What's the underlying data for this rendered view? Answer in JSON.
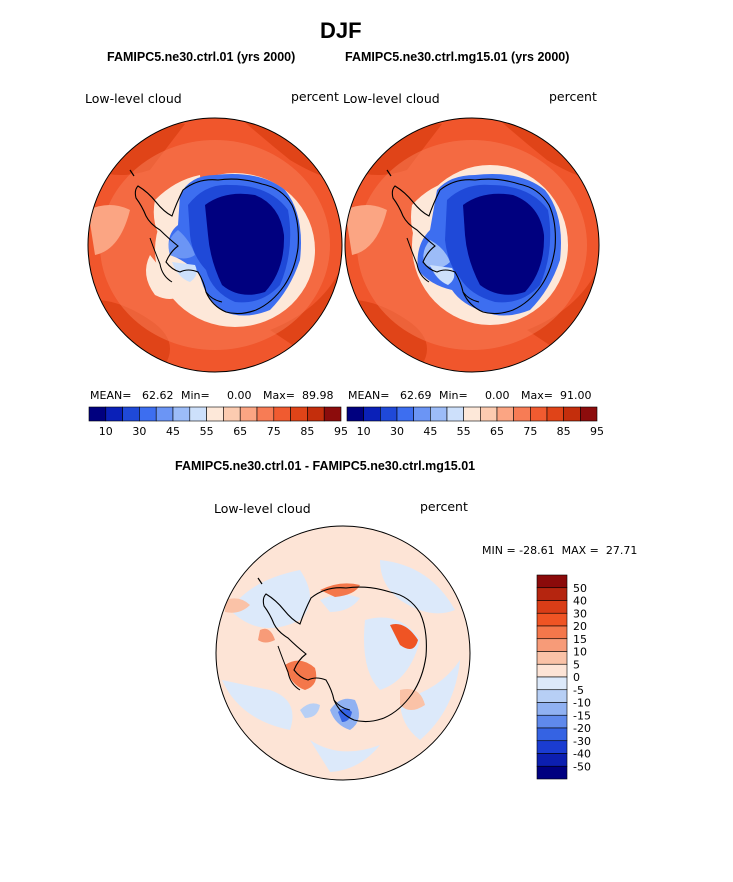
{
  "title": "DJF",
  "panels": [
    {
      "subtitle": "FAMIPC5.ne30.ctrl.01 (yrs 2000)",
      "left_label": "Low-level cloud",
      "right_label": "percent",
      "stats": {
        "mean_label": "MEAN=",
        "mean": "62.62",
        "min_label": "Min=",
        "min": "0.00",
        "max_label": "Max=",
        "max": "89.98"
      }
    },
    {
      "subtitle": "FAMIPC5.ne30.ctrl.mg15.01 (yrs 2000)",
      "left_label": "Low-level cloud",
      "right_label": "percent",
      "stats": {
        "mean_label": "MEAN=",
        "mean": "62.69",
        "min_label": "Min=",
        "min": "0.00",
        "max_label": "Max=",
        "max": "91.00"
      }
    },
    {
      "subtitle": "FAMIPC5.ne30.ctrl.01 - FAMIPC5.ne30.ctrl.mg15.01",
      "left_label": "Low-level cloud",
      "right_label": "percent",
      "stats_text": "MIN = -28.61  MAX =  27.71"
    }
  ],
  "chart_data": [
    {
      "type": "heatmap",
      "projection": "south-polar-stereographic",
      "title": "FAMIPC5.ne30.ctrl.01 (yrs 2000)",
      "variable": "Low-level cloud",
      "units": "percent",
      "mean": 62.62,
      "min": 0.0,
      "max": 89.98,
      "colorbar": {
        "tick_labels": [
          "10",
          "30",
          "45",
          "55",
          "65",
          "75",
          "85",
          "95"
        ],
        "colors": [
          "#00007f",
          "#0a20b8",
          "#1f49d8",
          "#3d6ef0",
          "#6b95f5",
          "#9cbcf8",
          "#cde0fb",
          "#fde8d9",
          "#fccbb0",
          "#fba583",
          "#f77c55",
          "#f05b30",
          "#e04418",
          "#c42e0c",
          "#8c0c0c"
        ]
      }
    },
    {
      "type": "heatmap",
      "projection": "south-polar-stereographic",
      "title": "FAMIPC5.ne30.ctrl.mg15.01 (yrs 2000)",
      "variable": "Low-level cloud",
      "units": "percent",
      "mean": 62.69,
      "min": 0.0,
      "max": 91.0,
      "colorbar": {
        "tick_labels": [
          "10",
          "30",
          "45",
          "55",
          "65",
          "75",
          "85",
          "95"
        ],
        "colors": [
          "#00007f",
          "#0a20b8",
          "#1f49d8",
          "#3d6ef0",
          "#6b95f5",
          "#9cbcf8",
          "#cde0fb",
          "#fde8d9",
          "#fccbb0",
          "#fba583",
          "#f77c55",
          "#f05b30",
          "#e04418",
          "#c42e0c",
          "#8c0c0c"
        ]
      }
    },
    {
      "type": "heatmap",
      "projection": "south-polar-stereographic",
      "title": "FAMIPC5.ne30.ctrl.01 - FAMIPC5.ne30.ctrl.mg15.01",
      "variable": "Low-level cloud",
      "units": "percent",
      "min": -28.61,
      "max": 27.71,
      "colorbar": {
        "orientation": "vertical",
        "tick_labels": [
          "50",
          "40",
          "30",
          "20",
          "15",
          "10",
          "5",
          "0",
          "-5",
          "-10",
          "-15",
          "-20",
          "-30",
          "-40",
          "-50"
        ],
        "colors": [
          "#8b0a0a",
          "#b5250f",
          "#d93d17",
          "#ef5424",
          "#f4774b",
          "#f79b78",
          "#fac2a7",
          "#fde4d6",
          "#dce9fa",
          "#b7cff5",
          "#90b1f2",
          "#5f89ec",
          "#3563e3",
          "#1a3cd1",
          "#0c1fb0",
          "#000080"
        ]
      }
    }
  ]
}
